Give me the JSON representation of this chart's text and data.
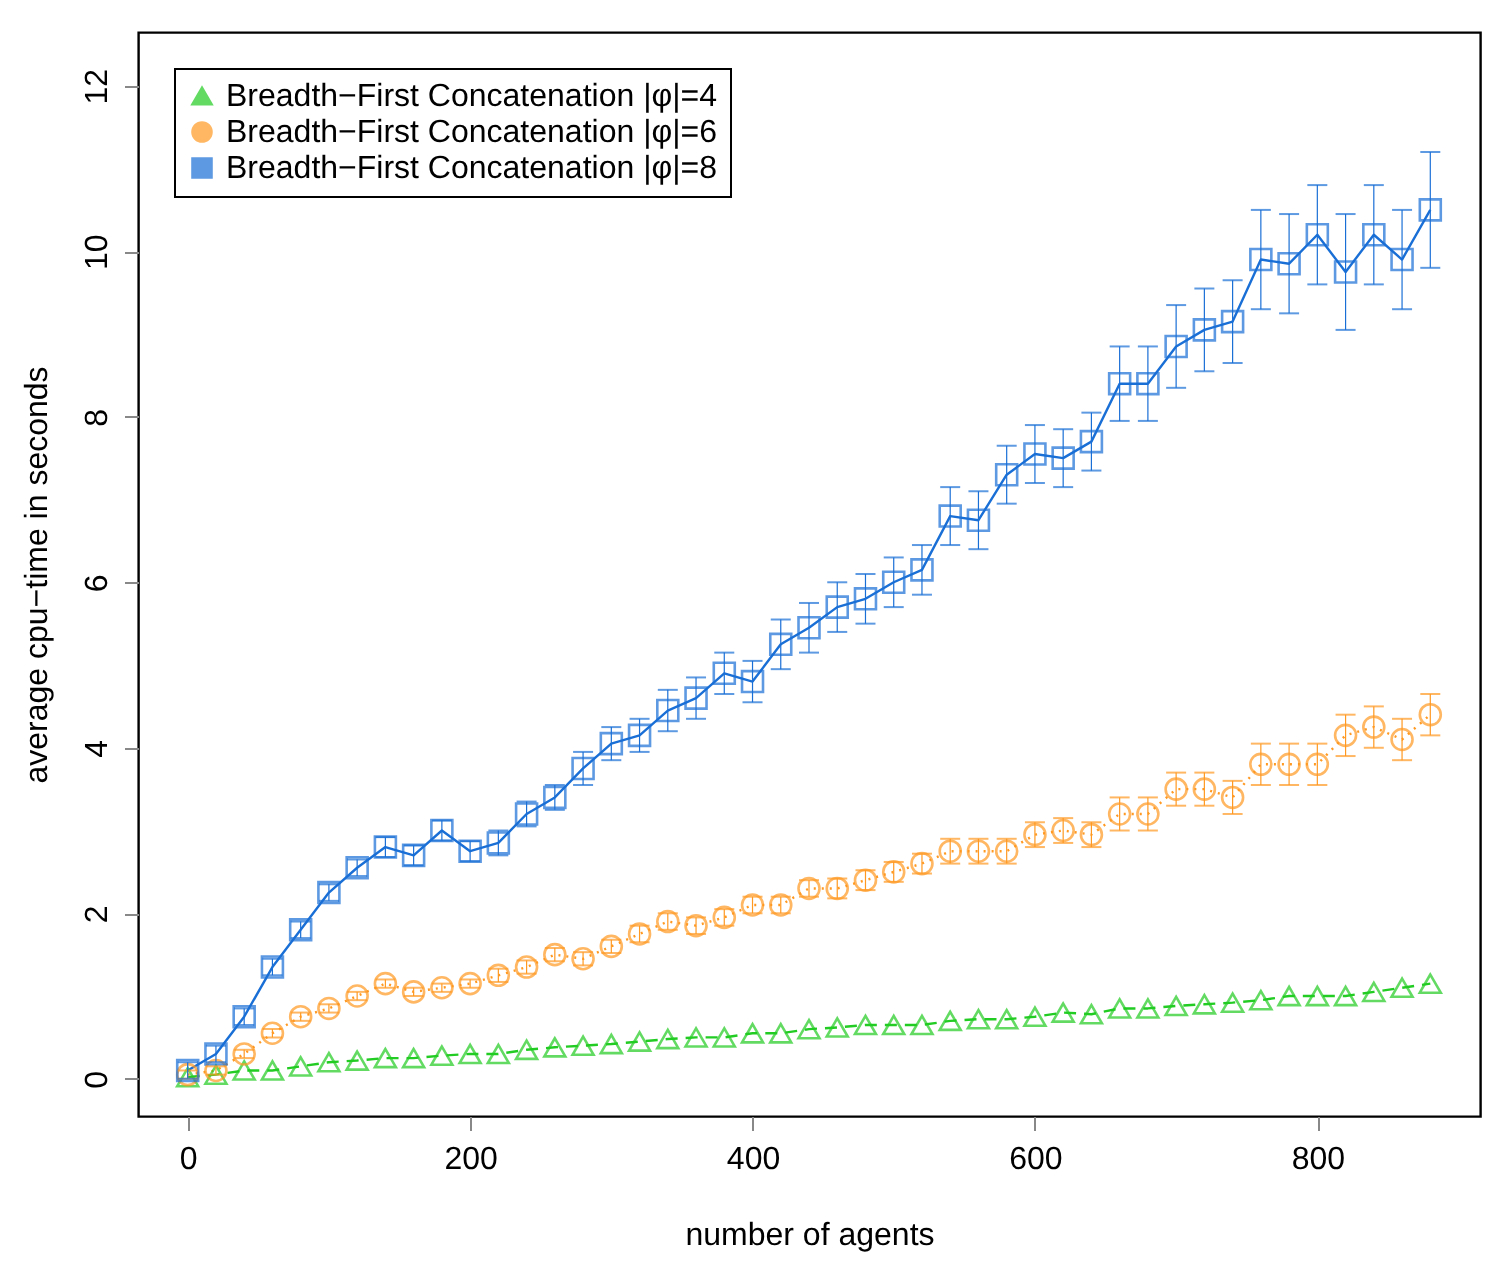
{
  "chart_data": {
    "type": "line",
    "xlabel": "number of agents",
    "ylabel": "average cpu−time in seconds",
    "x": [
      0,
      20,
      40,
      60,
      80,
      100,
      120,
      140,
      160,
      180,
      200,
      220,
      240,
      260,
      280,
      300,
      320,
      340,
      360,
      380,
      400,
      420,
      440,
      460,
      480,
      500,
      520,
      540,
      560,
      580,
      600,
      620,
      640,
      660,
      680,
      700,
      720,
      740,
      760,
      780,
      800,
      820,
      840,
      860,
      880
    ],
    "series": [
      {
        "name": "Breadth−First Concatenation |φ|=4",
        "color": "#22cc22",
        "marker": "triangle",
        "line_style": "dashed",
        "values": [
          0.02,
          0.05,
          0.1,
          0.1,
          0.15,
          0.2,
          0.22,
          0.25,
          0.25,
          0.28,
          0.3,
          0.3,
          0.35,
          0.38,
          0.4,
          0.42,
          0.45,
          0.48,
          0.5,
          0.5,
          0.55,
          0.55,
          0.6,
          0.62,
          0.65,
          0.65,
          0.65,
          0.7,
          0.72,
          0.72,
          0.75,
          0.8,
          0.78,
          0.85,
          0.85,
          0.88,
          0.9,
          0.92,
          0.95,
          1.0,
          1.0,
          1.0,
          1.05,
          1.1,
          1.15
        ]
      },
      {
        "name": "Breadth−First Concatenation |φ|=6",
        "color": "#ff9922",
        "marker": "circle",
        "line_style": "dotted",
        "values": [
          0.05,
          0.1,
          0.3,
          0.55,
          0.75,
          0.85,
          1.0,
          1.15,
          1.05,
          1.1,
          1.15,
          1.25,
          1.35,
          1.5,
          1.45,
          1.6,
          1.75,
          1.9,
          1.85,
          1.95,
          2.1,
          2.1,
          2.3,
          2.3,
          2.4,
          2.5,
          2.6,
          2.75,
          2.75,
          2.75,
          2.95,
          3.0,
          2.95,
          3.2,
          3.2,
          3.5,
          3.5,
          3.4,
          3.8,
          3.8,
          3.8,
          4.15,
          4.25,
          4.1,
          4.4
        ],
        "errors": [
          0.05,
          0.05,
          0.05,
          0.05,
          0.05,
          0.05,
          0.05,
          0.05,
          0.05,
          0.05,
          0.05,
          0.08,
          0.08,
          0.08,
          0.08,
          0.08,
          0.1,
          0.1,
          0.1,
          0.1,
          0.1,
          0.1,
          0.1,
          0.12,
          0.12,
          0.12,
          0.12,
          0.15,
          0.15,
          0.15,
          0.15,
          0.15,
          0.15,
          0.2,
          0.2,
          0.2,
          0.2,
          0.2,
          0.25,
          0.25,
          0.25,
          0.25,
          0.25,
          0.25,
          0.25
        ]
      },
      {
        "name": "Breadth−First Concatenation |φ|=8",
        "color": "#1a6fd6",
        "marker": "square",
        "line_style": "solid",
        "values": [
          0.1,
          0.3,
          0.75,
          1.35,
          1.8,
          2.25,
          2.55,
          2.8,
          2.7,
          3.0,
          2.75,
          2.85,
          3.2,
          3.4,
          3.75,
          4.05,
          4.15,
          4.45,
          4.6,
          4.9,
          4.8,
          5.25,
          5.45,
          5.7,
          5.8,
          6.0,
          6.15,
          6.8,
          6.75,
          7.3,
          7.55,
          7.5,
          7.7,
          8.4,
          8.4,
          8.85,
          9.05,
          9.15,
          9.9,
          9.85,
          10.2,
          9.75,
          10.2,
          9.9,
          10.5
        ],
        "errors": [
          0.1,
          0.1,
          0.1,
          0.1,
          0.1,
          0.1,
          0.1,
          0.12,
          0.12,
          0.12,
          0.12,
          0.15,
          0.15,
          0.15,
          0.2,
          0.2,
          0.2,
          0.25,
          0.25,
          0.25,
          0.25,
          0.3,
          0.3,
          0.3,
          0.3,
          0.3,
          0.3,
          0.35,
          0.35,
          0.35,
          0.35,
          0.35,
          0.35,
          0.45,
          0.45,
          0.5,
          0.5,
          0.5,
          0.6,
          0.6,
          0.6,
          0.7,
          0.6,
          0.6,
          0.7
        ]
      }
    ],
    "xlim": [
      -35.2,
      915.2
    ],
    "xticks": [
      0,
      200,
      400,
      600,
      800
    ],
    "ylim": [
      -0.45,
      12.65
    ],
    "yticks": [
      0,
      2,
      4,
      6,
      8,
      10,
      12
    ],
    "grid": false,
    "legend": "top left"
  }
}
